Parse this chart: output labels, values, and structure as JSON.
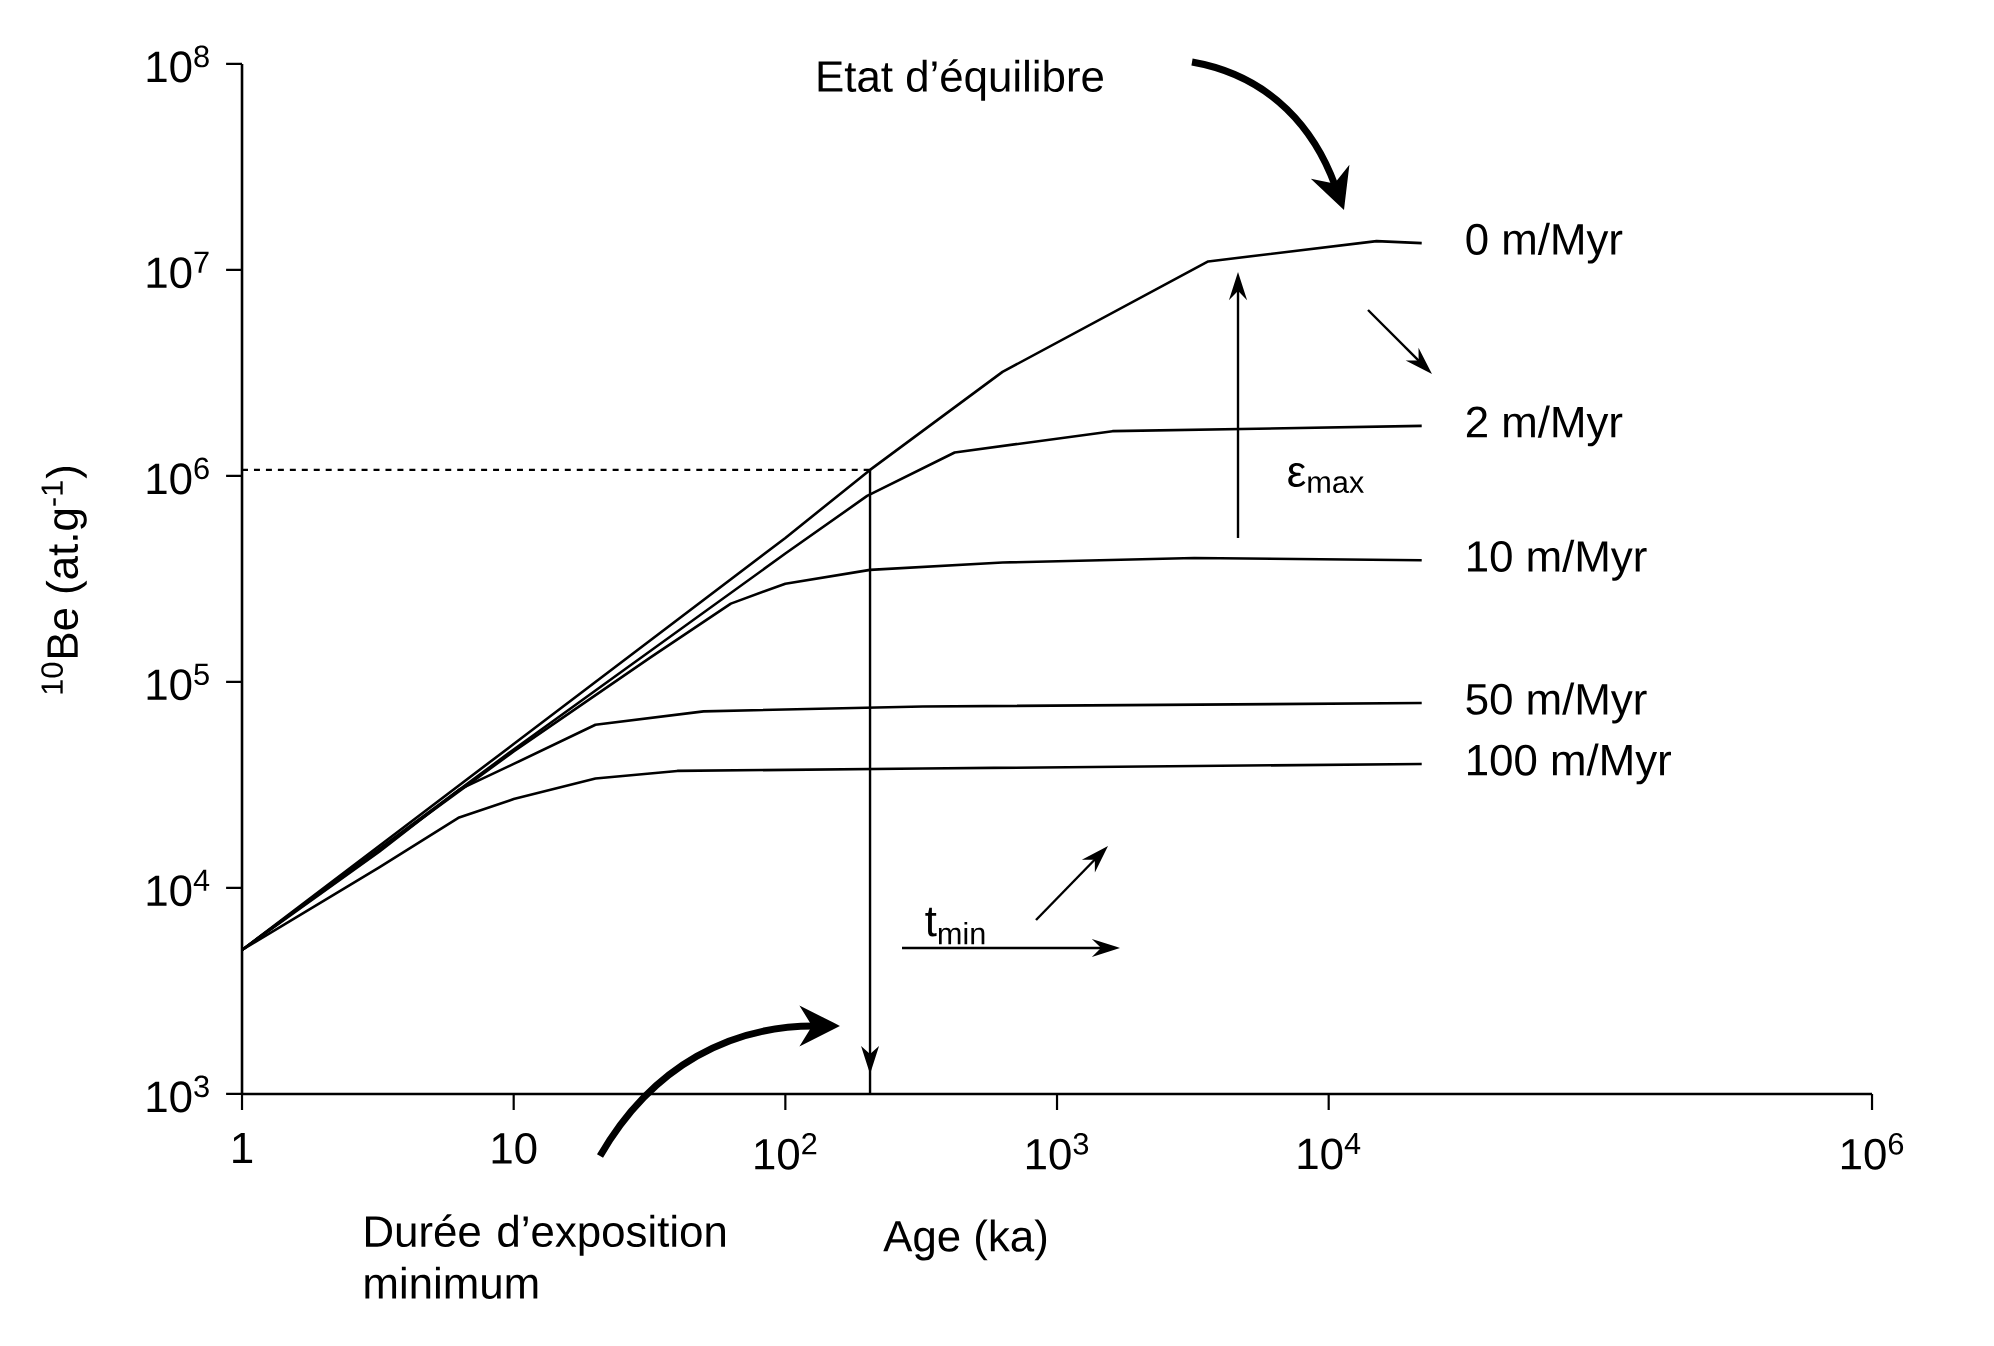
{
  "chart_data": {
    "type": "line",
    "xlabel": "Age (ka)",
    "ylabel": "$^{10}$Be (at.g$^{-1}$)",
    "log": "xy",
    "marker": "none",
    "line_style": "solid",
    "xlim": [
      1,
      1000000
    ],
    "ylim": [
      1000,
      100000000
    ],
    "xticks": [
      1,
      10,
      {
        "value": 100,
        "label": "10$^{2}$"
      },
      {
        "value": 1000,
        "label": "10$^{3}$"
      },
      {
        "value": 10000,
        "label": "10$^{4}$"
      },
      {
        "value": 1000000,
        "label": "10$^{6}$"
      }
    ],
    "yticks": [
      {
        "value": 1000,
        "label": "10$^{3}$"
      },
      {
        "value": 10000,
        "label": "10$^{4}$"
      },
      {
        "value": 100000,
        "label": "10$^{5}$"
      },
      {
        "value": 1000000,
        "label": "10$^{6}$"
      },
      {
        "value": 10000000,
        "label": "10$^{7}$"
      },
      {
        "value": 100000000,
        "label": "10$^{8}$"
      }
    ],
    "series": [
      {
        "name": "0 m/Myr",
        "color": "#000000",
        "x": [
          1,
          10,
          100,
          205,
          630,
          3600,
          15000,
          22000
        ],
        "values": [
          5000,
          50000,
          500000,
          1070000,
          3200000,
          11000000,
          13800000,
          13500000
        ]
      },
      {
        "name": "2 m/Myr",
        "color": "#000000",
        "x": [
          1,
          10,
          100,
          200,
          420,
          1600,
          22000
        ],
        "values": [
          5000,
          47000,
          420000,
          800000,
          1300000,
          1650000,
          1750000
        ]
      },
      {
        "name": "10 m/Myr",
        "color": "#000000",
        "x": [
          1,
          10,
          32,
          63,
          100,
          205,
          630,
          3200,
          22000
        ],
        "values": [
          5000,
          46000,
          132000,
          240000,
          300000,
          350000,
          380000,
          400000,
          390000
        ]
      },
      {
        "name": "50 m/Myr",
        "color": "#000000",
        "x": [
          1,
          3.2,
          6.3,
          10,
          20,
          50,
          320,
          22000
        ],
        "values": [
          5000,
          15000,
          30000,
          40000,
          62000,
          72000,
          76000,
          79000
        ]
      },
      {
        "name": "100 m/Myr",
        "color": "#000000",
        "x": [
          1,
          3.2,
          6.3,
          10,
          20,
          40,
          320,
          22000
        ],
        "values": [
          5000,
          12600,
          22000,
          27000,
          34000,
          37000,
          38000,
          40000
        ]
      }
    ],
    "ref_lines": [
      {
        "axis": "y",
        "value": 1070000,
        "line_style": "dashed"
      },
      {
        "axis": "x",
        "value": 205,
        "line_style": "solid"
      }
    ],
    "annotations": [
      "Etat d’équilibre",
      "Durée d’exposition minimum",
      "ε$_{max}$",
      "t$_{min}$"
    ]
  }
}
